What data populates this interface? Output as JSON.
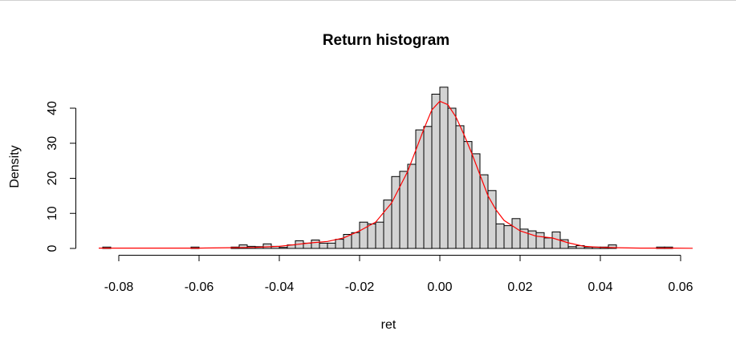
{
  "chart_data": {
    "type": "bar",
    "title": "Return histogram",
    "xlabel": "ret",
    "ylabel": "Density",
    "xlim": [
      -0.088,
      0.064
    ],
    "ylim": [
      0,
      46
    ],
    "x_ticks": [
      "-0.08",
      "-0.06",
      "-0.04",
      "-0.02",
      "0.00",
      "0.02",
      "0.04",
      "0.06"
    ],
    "y_ticks": [
      "0",
      "10",
      "20",
      "30",
      "40"
    ],
    "bin_width": 0.002,
    "histogram": {
      "bin_starts": [
        -0.084,
        -0.062,
        -0.052,
        -0.05,
        -0.048,
        -0.046,
        -0.044,
        -0.042,
        -0.04,
        -0.038,
        -0.036,
        -0.034,
        -0.032,
        -0.03,
        -0.028,
        -0.026,
        -0.024,
        -0.022,
        -0.02,
        -0.018,
        -0.016,
        -0.014,
        -0.012,
        -0.01,
        -0.008,
        -0.006,
        -0.004,
        -0.002,
        0.0,
        0.002,
        0.004,
        0.006,
        0.008,
        0.01,
        0.012,
        0.014,
        0.016,
        0.018,
        0.02,
        0.022,
        0.024,
        0.026,
        0.028,
        0.03,
        0.032,
        0.034,
        0.036,
        0.038,
        0.04,
        0.042,
        0.054,
        0.056
      ],
      "density": [
        0.4,
        0.4,
        0.4,
        1.0,
        0.6,
        0.5,
        1.3,
        0.6,
        0.3,
        1.0,
        2.2,
        1.5,
        2.4,
        1.5,
        1.5,
        2.6,
        4.0,
        4.5,
        7.5,
        7.0,
        7.5,
        13.8,
        20.5,
        22.0,
        24.0,
        33.8,
        34.8,
        44.0,
        46.0,
        40.0,
        35.0,
        30.5,
        27.0,
        21.0,
        16.5,
        7.0,
        6.5,
        8.5,
        5.5,
        5.0,
        4.5,
        3.0,
        4.7,
        2.5,
        0.5,
        0.8,
        0.4,
        0.4,
        0.4,
        1.0,
        0.4,
        0.4
      ]
    },
    "density_curve": {
      "color": "#ff0000",
      "x": [
        -0.085,
        -0.08,
        -0.06,
        -0.052,
        -0.046,
        -0.04,
        -0.036,
        -0.032,
        -0.028,
        -0.024,
        -0.02,
        -0.016,
        -0.012,
        -0.008,
        -0.004,
        -0.002,
        0.0,
        0.002,
        0.004,
        0.006,
        0.008,
        0.01,
        0.012,
        0.014,
        0.016,
        0.02,
        0.024,
        0.028,
        0.032,
        0.036,
        0.04,
        0.044,
        0.05,
        0.058,
        0.063
      ],
      "y": [
        0.1,
        0.1,
        0.1,
        0.2,
        0.3,
        0.6,
        1.1,
        1.6,
        2.0,
        3.0,
        5.0,
        7.5,
        13.0,
        22.0,
        34.0,
        39.5,
        42.0,
        41.0,
        37.5,
        32.5,
        27.0,
        21.0,
        15.0,
        11.0,
        8.0,
        5.0,
        3.5,
        3.0,
        1.6,
        0.6,
        0.3,
        0.2,
        0.1,
        0.1,
        0.05
      ]
    },
    "bar_fill": "#d3d3d3",
    "bar_stroke": "#000000",
    "grid": false
  }
}
